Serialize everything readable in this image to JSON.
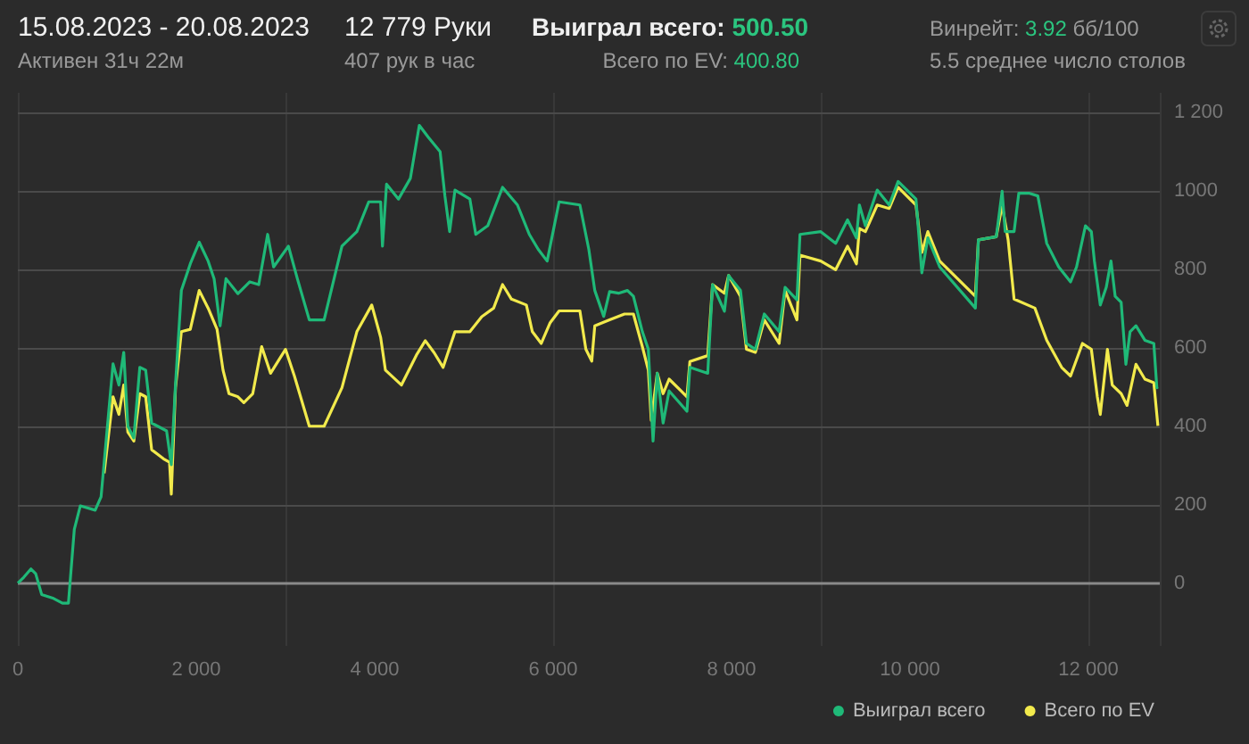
{
  "chart_data": {
    "type": "line",
    "title": "15.08.2023 - 20.08.2023",
    "subtitle": "Активен 31ч 22м",
    "annotations": [
      "12 779 Руки",
      "407 рук в час",
      "Выиграл всего: 500.50",
      "Всего по EV: 400.80",
      "Винрейт: 3.92 бб/100",
      "5.5 среднее число столов"
    ],
    "xlim": [
      0,
      12800
    ],
    "xticks": [
      0,
      {
        "value": 2000,
        "label": "2 000"
      },
      {
        "value": 4000,
        "label": "4 000"
      },
      {
        "value": 6000,
        "label": "6 000"
      },
      {
        "value": 8000,
        "label": "8 000"
      },
      {
        "value": 10000,
        "label": "10 000"
      },
      {
        "value": 12000,
        "label": "12 000"
      }
    ],
    "ylim": [
      -160,
      1250
    ],
    "yticks": [
      0,
      200,
      400,
      600,
      800,
      1000,
      {
        "value": 1200,
        "label": "1 200"
      }
    ],
    "grid": true,
    "legend": "bottom right",
    "marker": "none",
    "line_style": "solid",
    "series": [
      {
        "name": "Выиграл всего",
        "color": "#1fb978",
        "x": [
          0,
          67,
          147,
          200,
          267,
          400,
          500,
          567,
          633,
          700,
          867,
          933,
          1067,
          1133,
          1187,
          1233,
          1300,
          1367,
          1433,
          1500,
          1667,
          1720,
          1767,
          1833,
          1933,
          2033,
          2133,
          2200,
          2267,
          2333,
          2467,
          2600,
          2700,
          2800,
          2867,
          3033,
          3133,
          3267,
          3433,
          3633,
          3800,
          3933,
          4067,
          4087,
          4133,
          4267,
          4400,
          4500,
          4600,
          4733,
          4787,
          4840,
          4900,
          5067,
          5133,
          5267,
          5433,
          5600,
          5733,
          5833,
          5933,
          6067,
          6300,
          6400,
          6467,
          6567,
          6633,
          6733,
          6833,
          6900,
          7000,
          7067,
          7120,
          7167,
          7233,
          7300,
          7500,
          7533,
          7733,
          7787,
          7920,
          7967,
          8100,
          8167,
          8267,
          8367,
          8533,
          8600,
          8733,
          8767,
          9000,
          9167,
          9300,
          9400,
          9433,
          9500,
          9633,
          9767,
          9867,
          10067,
          10133,
          10200,
          10333,
          10733,
          10767,
          10967,
          11033,
          11067,
          11167,
          11220,
          11333,
          11433,
          11533,
          11667,
          11800,
          11867,
          11967,
          12033,
          12067,
          12133,
          12200,
          12253,
          12300,
          12367,
          12420,
          12467,
          12533,
          12633,
          12733,
          12767,
          12779
        ],
        "values": [
          0,
          15,
          36,
          24,
          -29,
          -39,
          -51,
          -51,
          137,
          197,
          186,
          220,
          559,
          505,
          588,
          400,
          370,
          550,
          543,
          408,
          388,
          302,
          505,
          746,
          814,
          869,
          821,
          776,
          656,
          776,
          738,
          768,
          761,
          889,
          806,
          859,
          776,
          671,
          671,
          859,
          896,
          972,
          972,
          859,
          1017,
          979,
          1032,
          1167,
          1137,
          1100,
          987,
          896,
          1002,
          979,
          889,
          911,
          1009,
          964,
          889,
          851,
          821,
          972,
          964,
          851,
          746,
          680,
          743,
          739,
          746,
          731,
          641,
          596,
          362,
          535,
          408,
          490,
          438,
          550,
          535,
          761,
          693,
          784,
          746,
          611,
          596,
          686,
          641,
          754,
          722,
          889,
          896,
          866,
          926,
          880,
          964,
          911,
          1002,
          964,
          1024,
          979,
          791,
          880,
          806,
          701,
          875,
          883,
          999,
          896,
          896,
          994,
          994,
          987,
          866,
          806,
          768,
          806,
          911,
          896,
          821,
          709,
          754,
          821,
          731,
          716,
          558,
          641,
          656,
          619,
          611,
          498,
          500
        ]
      },
      {
        "name": "Всего по EV",
        "color": "#f2ea4c",
        "x": [
          967,
          1067,
          1133,
          1187,
          1233,
          1300,
          1367,
          1433,
          1500,
          1633,
          1700,
          1720,
          1767,
          1833,
          1933,
          2033,
          2133,
          2233,
          2300,
          2367,
          2467,
          2533,
          2633,
          2733,
          2833,
          3000,
          3100,
          3267,
          3433,
          3633,
          3800,
          3967,
          4067,
          4120,
          4300,
          4467,
          4567,
          4667,
          4767,
          4900,
          5067,
          5200,
          5333,
          5433,
          5533,
          5700,
          5767,
          5867,
          5967,
          6067,
          6300,
          6367,
          6433,
          6467,
          6633,
          6800,
          6900,
          7000,
          7067,
          7100,
          7167,
          7233,
          7300,
          7500,
          7533,
          7733,
          7787,
          7920,
          7967,
          8100,
          8167,
          8267,
          8367,
          8533,
          8600,
          8733,
          8767,
          9000,
          9167,
          9300,
          9400,
          9433,
          9500,
          9633,
          9767,
          9867,
          10067,
          10133,
          10200,
          10333,
          10733,
          10767,
          10967,
          11033,
          11100,
          11167,
          11400,
          11533,
          11700,
          11800,
          11933,
          12033,
          12100,
          12133,
          12213,
          12267,
          12367,
          12433,
          12533,
          12633,
          12733,
          12779
        ],
        "values": [
          280,
          475,
          430,
          505,
          385,
          362,
          483,
          475,
          340,
          317,
          308,
          227,
          498,
          641,
          647,
          746,
          701,
          647,
          543,
          483,
          475,
          460,
          483,
          603,
          535,
          596,
          528,
          400,
          400,
          498,
          641,
          709,
          626,
          543,
          505,
          581,
          618,
          587,
          550,
          641,
          641,
          679,
          701,
          761,
          724,
          709,
          641,
          611,
          664,
          694,
          694,
          596,
          566,
          656,
          671,
          686,
          686,
          603,
          543,
          415,
          535,
          483,
          520,
          475,
          565,
          580,
          761,
          739,
          784,
          731,
          596,
          588,
          671,
          611,
          746,
          671,
          836,
          821,
          799,
          859,
          814,
          904,
          896,
          964,
          955,
          1009,
          964,
          843,
          896,
          821,
          731,
          875,
          883,
          964,
          875,
          724,
          701,
          619,
          550,
          528,
          611,
          596,
          475,
          430,
          596,
          505,
          483,
          453,
          558,
          520,
          511,
          401
        ]
      }
    ]
  }
}
